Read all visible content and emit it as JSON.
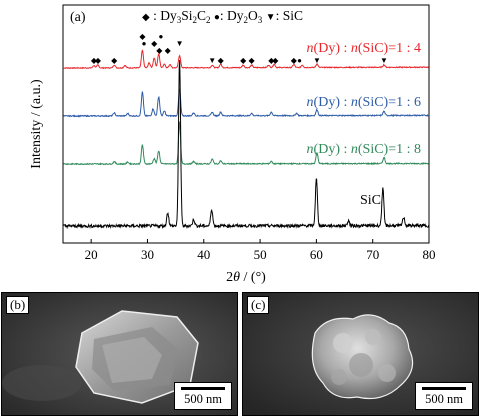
{
  "chart_data": {
    "type": "line",
    "panel_label": "(a)",
    "xlabel_prefix": "2",
    "xlabel_theta": "θ",
    "xlabel_suffix": " / (°)",
    "ylabel": "Intensity / (a.u.)",
    "xlim": [
      15,
      80
    ],
    "xticks": [
      20,
      30,
      40,
      50,
      60,
      70,
      80
    ],
    "legend": {
      "diamond_symbol": "◆",
      "dy3si2c2_main": ": Dy",
      "dy3si2c2_sub1": "3",
      "dy3si2c2_mid": "Si",
      "dy3si2c2_sub2": "2",
      "dy3si2c2_end": "C",
      "dy3si2c2_sub3": "2",
      "circle_symbol": "●",
      "dy2o3_main": ": Dy",
      "dy2o3_sub1": "2",
      "dy2o3_end": "O",
      "dy2o3_sub2": "3",
      "triangle_symbol": "▼",
      "sic_label": ": SiC"
    },
    "series": [
      {
        "name_n1": "n",
        "name_mid": "(Dy) : ",
        "name_n2": "n",
        "name_end": "(SiC)=1 : 4",
        "color": "#e8262b",
        "baseline": 0.08,
        "peaks": [
          [
            20.5,
            0.05
          ],
          [
            21.2,
            0.06
          ],
          [
            24.1,
            0.06
          ],
          [
            26.0,
            0.05
          ],
          [
            29.1,
            0.35
          ],
          [
            30.3,
            0.1
          ],
          [
            31.2,
            0.2
          ],
          [
            32.0,
            0.28
          ],
          [
            33.0,
            0.08
          ],
          [
            34.0,
            0.07
          ],
          [
            35.7,
            0.25
          ],
          [
            41.5,
            0.05
          ],
          [
            43.0,
            0.07
          ],
          [
            47.0,
            0.05
          ],
          [
            48.5,
            0.05
          ],
          [
            51.5,
            0.05
          ],
          [
            52.5,
            0.07
          ],
          [
            56.0,
            0.06
          ],
          [
            57.5,
            0.05
          ],
          [
            60.1,
            0.07
          ],
          [
            72.0,
            0.05
          ]
        ]
      },
      {
        "name_n1": "n",
        "name_mid": "(Dy) : ",
        "name_n2": "n",
        "name_end": "(SiC)=1 : 6",
        "color": "#2e5ca8",
        "baseline": 0.06,
        "peaks": [
          [
            24.1,
            0.05
          ],
          [
            26.5,
            0.04
          ],
          [
            29.1,
            0.4
          ],
          [
            31.0,
            0.12
          ],
          [
            32.0,
            0.32
          ],
          [
            33.0,
            0.08
          ],
          [
            35.7,
            0.45
          ],
          [
            38.2,
            0.05
          ],
          [
            41.5,
            0.06
          ],
          [
            43.0,
            0.06
          ],
          [
            48.5,
            0.04
          ],
          [
            52.0,
            0.06
          ],
          [
            56.5,
            0.04
          ],
          [
            60.1,
            0.1
          ],
          [
            72.0,
            0.07
          ]
        ]
      },
      {
        "name_n1": "n",
        "name_mid": "(Dy) : ",
        "name_n2": "n",
        "name_end": "(SiC)=1 : 8",
        "color": "#2f8a5a",
        "baseline": 0.05,
        "peaks": [
          [
            24.1,
            0.04
          ],
          [
            26.5,
            0.03
          ],
          [
            29.1,
            0.32
          ],
          [
            31.2,
            0.09
          ],
          [
            32.0,
            0.22
          ],
          [
            35.7,
            0.7
          ],
          [
            38.2,
            0.04
          ],
          [
            41.5,
            0.08
          ],
          [
            43.0,
            0.05
          ],
          [
            52.0,
            0.04
          ],
          [
            60.1,
            0.18
          ],
          [
            72.0,
            0.1
          ]
        ]
      },
      {
        "name": "SiC",
        "color": "#000000",
        "baseline": 0.04,
        "peaks": [
          [
            33.6,
            0.08
          ],
          [
            35.7,
            1.0
          ],
          [
            38.2,
            0.04
          ],
          [
            41.4,
            0.1
          ],
          [
            60.0,
            0.28
          ],
          [
            65.7,
            0.03
          ],
          [
            71.8,
            0.22
          ],
          [
            75.5,
            0.05
          ]
        ]
      }
    ],
    "markers": [
      {
        "symbol": "◆",
        "x": 20.5,
        "row": 0
      },
      {
        "symbol": "◆",
        "x": 21.2,
        "row": 0
      },
      {
        "symbol": "◆",
        "x": 24.1,
        "row": 0
      },
      {
        "symbol": "◆",
        "x": 29.1,
        "row": 2
      },
      {
        "symbol": "●",
        "x": 29.4,
        "row": 1
      },
      {
        "symbol": "◆",
        "x": 31.2,
        "row": 1
      },
      {
        "symbol": "◆",
        "x": 32.1,
        "row": 0
      },
      {
        "symbol": "●",
        "x": 32.4,
        "row": 2
      },
      {
        "symbol": "◆",
        "x": 33.6,
        "row": 0
      },
      {
        "symbol": "▼",
        "x": 35.7,
        "row": 1
      },
      {
        "symbol": "▼",
        "x": 41.5,
        "row": 0
      },
      {
        "symbol": "◆",
        "x": 43.0,
        "row": 0
      },
      {
        "symbol": "◆",
        "x": 47.0,
        "row": 0
      },
      {
        "symbol": "◆",
        "x": 48.5,
        "row": 0
      },
      {
        "symbol": "◆",
        "x": 52.0,
        "row": 0
      },
      {
        "symbol": "◆",
        "x": 52.7,
        "row": 0
      },
      {
        "symbol": "◆",
        "x": 56.0,
        "row": 0
      },
      {
        "symbol": "●",
        "x": 57.0,
        "row": 0
      },
      {
        "symbol": "▼",
        "x": 60.1,
        "row": 0
      },
      {
        "symbol": "▼",
        "x": 72.0,
        "row": 0
      }
    ]
  },
  "panels": {
    "b": {
      "label": "(b)",
      "scale": "500 nm"
    },
    "c": {
      "label": "(c)",
      "scale": "500 nm"
    }
  }
}
